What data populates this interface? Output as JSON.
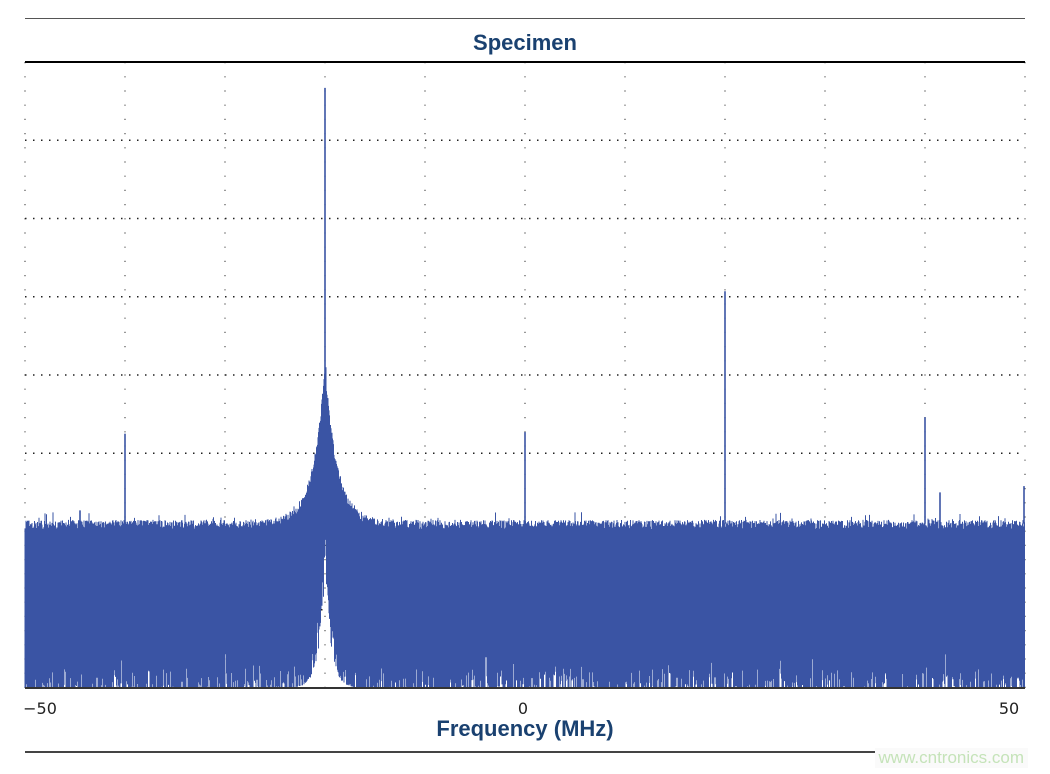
{
  "chart_data": {
    "type": "line",
    "title": "Specimen",
    "xlabel": "Frequency (MHz)",
    "ylabel": "",
    "xlim": [
      -50,
      50
    ],
    "ylim": [
      0,
      8
    ],
    "x_ticks": [
      -50,
      0,
      50
    ],
    "x_tick_labels": [
      "−50",
      "0",
      "50"
    ],
    "grid": "dotted, x every 10 MHz, y 8 divisions",
    "legend": "none",
    "series": [
      {
        "noise_floor_top": 2.1,
        "noise_floor_bottom": 0,
        "peaks": [
          {
            "x": -44.5,
            "y": 2.27
          },
          {
            "x": -40,
            "y": 3.25
          },
          {
            "x": -20,
            "y": 7.67
          },
          {
            "x": 0,
            "y": 3.27
          },
          {
            "x": 20,
            "y": 5.07
          },
          {
            "x": 40,
            "y": 3.46
          },
          {
            "x": 41.5,
            "y": 2.5
          },
          {
            "x": 50,
            "y": 2.58
          }
        ],
        "carrier_skirt_center": -20
      }
    ],
    "colors": {
      "trace": "#3a54a4",
      "title": "#1a4170"
    }
  },
  "watermark": "www.cntronics.com"
}
